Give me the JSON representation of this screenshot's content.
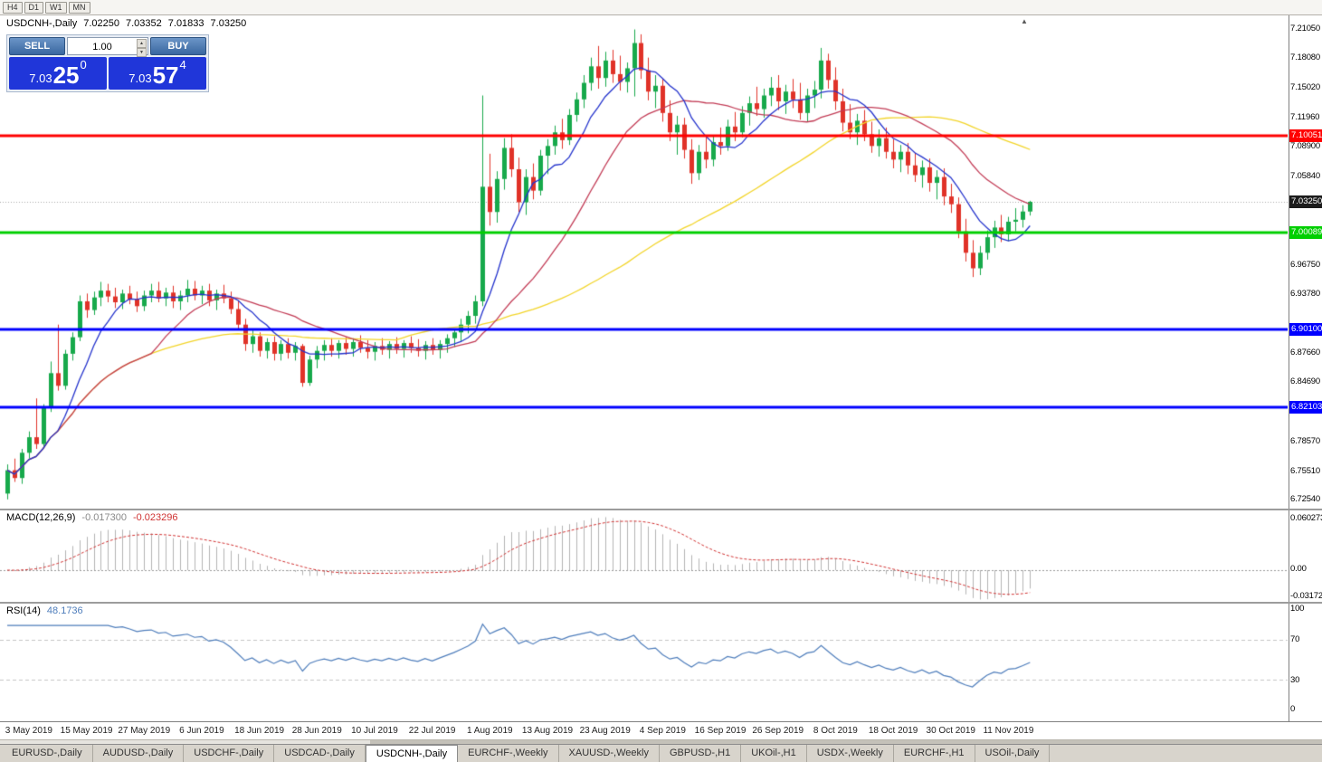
{
  "toolbar": {
    "buttons": [
      "H4",
      "D1",
      "W1",
      "MN"
    ]
  },
  "chart": {
    "title": {
      "symbol": "USDCNH-,Daily",
      "open": "7.02250",
      "high": "7.03352",
      "low": "7.01833",
      "close": "7.03250"
    },
    "shift_marker": "▲",
    "trade_panel": {
      "sell_label": "SELL",
      "buy_label": "BUY",
      "volume": "1.00",
      "sell_price": {
        "main": "7.03",
        "big": "25",
        "sup": "0"
      },
      "buy_price": {
        "main": "7.03",
        "big": "57",
        "sup": "4"
      }
    },
    "price_axis": {
      "labels": [
        "7.21050",
        "7.18080",
        "7.15020",
        "7.11960",
        "7.08900",
        "7.05840",
        "6.96750",
        "6.93780",
        "6.87660",
        "6.84690",
        "6.78570",
        "6.75510",
        "6.72540"
      ],
      "current_price": "7.03250"
    },
    "levels": [
      {
        "label": "7.10051",
        "price": 7.10051,
        "color": "#ff0000"
      },
      {
        "label": "7.00089",
        "price": 7.00089,
        "color": "#00cf00"
      },
      {
        "label": "6.90100",
        "price": 6.901,
        "color": "#0000ff"
      },
      {
        "label": "6.82103",
        "price": 6.82103,
        "color": "#0000ff"
      }
    ]
  },
  "macd": {
    "label": "MACD(12,26,9)",
    "value_main": "-0.017300",
    "value_signal": "-0.023296",
    "axis": {
      "top": "0.060273",
      "zero": "0.00",
      "bottom": "-0.031725"
    }
  },
  "rsi": {
    "label": "RSI(14)",
    "value": "48.1736",
    "axis": {
      "top": "100",
      "upper": "70",
      "lower": "30",
      "bottom": "0"
    }
  },
  "date_axis": {
    "labels": [
      "3 May 2019",
      "15 May 2019",
      "27 May 2019",
      "6 Jun 2019",
      "18 Jun 2019",
      "28 Jun 2019",
      "10 Jul 2019",
      "22 Jul 2019",
      "1 Aug 2019",
      "13 Aug 2019",
      "23 Aug 2019",
      "4 Sep 2019",
      "16 Sep 2019",
      "26 Sep 2019",
      "8 Oct 2019",
      "18 Oct 2019",
      "30 Oct 2019",
      "11 Nov 2019"
    ]
  },
  "tabs": {
    "active_index": 4,
    "items": [
      "EURUSD-,Daily",
      "AUDUSD-,Daily",
      "USDCHF-,Daily",
      "USDCAD-,Daily",
      "USDCNH-,Daily",
      "EURCHF-,Weekly",
      "XAUUSD-,Weekly",
      "GBPUSD-,H1",
      "UKOil-,H1",
      "USDX-,Weekly",
      "EURCHF-,H1",
      "USOil-,Daily"
    ]
  },
  "colors": {
    "candle_up": "#17a94b",
    "candle_down": "#e03228",
    "ma_fast": "#2433cc",
    "ma_mid": "#c23b55",
    "ma_slow": "#f2d428",
    "macd_hist": "#b3b3b3",
    "macd_signal": "#d03030",
    "rsi_line": "#4e7dbb",
    "current_tag": "#1c1c1c",
    "level_red": "#ff0000",
    "level_green": "#00cf00",
    "level_blue": "#0000ff",
    "trade_button": "#3e6da8",
    "price_block": "#2036d9"
  },
  "chart_data": {
    "type": "candlestick",
    "symbol": "USDCNH",
    "timeframe": "Daily",
    "price_range": [
      6.7165,
      7.2245
    ],
    "indicators": {
      "ma_fast_period": 8,
      "ma_mid_period": 21,
      "ma_slow_period": 55,
      "macd": [
        12,
        26,
        9
      ],
      "rsi_period": 14
    },
    "ohlc": [
      [
        6.732,
        6.762,
        6.726,
        6.756
      ],
      [
        6.756,
        6.768,
        6.744,
        6.748
      ],
      [
        6.748,
        6.778,
        6.742,
        6.774
      ],
      [
        6.774,
        6.796,
        6.768,
        6.79
      ],
      [
        6.79,
        6.83,
        6.778,
        6.783
      ],
      [
        6.783,
        6.824,
        6.779,
        6.82
      ],
      [
        6.82,
        6.868,
        6.816,
        6.856
      ],
      [
        6.856,
        6.906,
        6.838,
        6.843
      ],
      [
        6.843,
        6.88,
        6.839,
        6.876
      ],
      [
        6.876,
        6.898,
        6.869,
        6.893
      ],
      [
        6.893,
        6.936,
        6.889,
        6.93
      ],
      [
        6.93,
        6.938,
        6.913,
        6.921
      ],
      [
        6.921,
        6.94,
        6.916,
        6.934
      ],
      [
        6.934,
        6.95,
        6.925,
        6.941
      ],
      [
        6.941,
        6.948,
        6.929,
        6.935
      ],
      [
        6.935,
        6.944,
        6.923,
        6.929
      ],
      [
        6.929,
        6.942,
        6.922,
        6.938
      ],
      [
        6.938,
        6.946,
        6.927,
        6.932
      ],
      [
        6.932,
        6.94,
        6.919,
        6.925
      ],
      [
        6.925,
        6.941,
        6.92,
        6.936
      ],
      [
        6.936,
        6.948,
        6.929,
        6.941
      ],
      [
        6.941,
        6.95,
        6.929,
        6.933
      ],
      [
        6.933,
        6.944,
        6.925,
        6.939
      ],
      [
        6.939,
        6.946,
        6.923,
        6.93
      ],
      [
        6.93,
        6.941,
        6.921,
        6.936
      ],
      [
        6.936,
        6.952,
        6.929,
        6.943
      ],
      [
        6.943,
        6.951,
        6.931,
        6.936
      ],
      [
        6.936,
        6.946,
        6.927,
        6.941
      ],
      [
        6.941,
        6.948,
        6.925,
        6.931
      ],
      [
        6.931,
        6.942,
        6.921,
        6.938
      ],
      [
        6.938,
        6.947,
        6.928,
        6.933
      ],
      [
        6.933,
        6.94,
        6.917,
        6.922
      ],
      [
        6.922,
        6.93,
        6.901,
        6.906
      ],
      [
        6.906,
        6.912,
        6.879,
        6.886
      ],
      [
        6.886,
        6.9,
        6.877,
        6.894
      ],
      [
        6.894,
        6.898,
        6.873,
        6.879
      ],
      [
        6.879,
        6.892,
        6.871,
        6.888
      ],
      [
        6.888,
        6.894,
        6.869,
        6.876
      ],
      [
        6.876,
        6.89,
        6.869,
        6.886
      ],
      [
        6.886,
        6.892,
        6.871,
        6.877
      ],
      [
        6.877,
        6.888,
        6.869,
        6.884
      ],
      [
        6.884,
        6.886,
        6.842,
        6.846
      ],
      [
        6.846,
        6.874,
        6.843,
        6.87
      ],
      [
        6.87,
        6.884,
        6.861,
        6.879
      ],
      [
        6.879,
        6.89,
        6.869,
        6.885
      ],
      [
        6.885,
        6.892,
        6.873,
        6.879
      ],
      [
        6.879,
        6.89,
        6.871,
        6.887
      ],
      [
        6.887,
        6.893,
        6.875,
        6.881
      ],
      [
        6.881,
        6.892,
        6.873,
        6.888
      ],
      [
        6.888,
        6.895,
        6.877,
        6.882
      ],
      [
        6.882,
        6.89,
        6.871,
        6.878
      ],
      [
        6.878,
        6.888,
        6.869,
        6.884
      ],
      [
        6.884,
        6.892,
        6.875,
        6.88
      ],
      [
        6.88,
        6.889,
        6.871,
        6.886
      ],
      [
        6.886,
        6.893,
        6.876,
        6.881
      ],
      [
        6.881,
        6.89,
        6.872,
        6.887
      ],
      [
        6.887,
        6.894,
        6.877,
        6.882
      ],
      [
        6.882,
        6.891,
        6.873,
        6.879
      ],
      [
        6.879,
        6.889,
        6.87,
        6.885
      ],
      [
        6.885,
        6.892,
        6.875,
        6.88
      ],
      [
        6.88,
        6.89,
        6.871,
        6.886
      ],
      [
        6.886,
        6.896,
        6.877,
        6.892
      ],
      [
        6.892,
        6.902,
        6.883,
        6.898
      ],
      [
        6.898,
        6.912,
        6.889,
        6.906
      ],
      [
        6.906,
        6.92,
        6.897,
        6.915
      ],
      [
        6.915,
        6.936,
        6.907,
        6.93
      ],
      [
        6.93,
        7.142,
        6.925,
        7.048
      ],
      [
        7.048,
        7.082,
        7.008,
        7.022
      ],
      [
        7.022,
        7.064,
        7.011,
        7.056
      ],
      [
        7.056,
        7.098,
        7.045,
        7.088
      ],
      [
        7.088,
        7.102,
        7.058,
        7.066
      ],
      [
        7.066,
        7.078,
        7.022,
        7.032
      ],
      [
        7.032,
        7.066,
        7.019,
        7.058
      ],
      [
        7.058,
        7.072,
        7.035,
        7.044
      ],
      [
        7.044,
        7.086,
        7.039,
        7.08
      ],
      [
        7.08,
        7.097,
        7.061,
        7.09
      ],
      [
        7.09,
        7.111,
        7.081,
        7.104
      ],
      [
        7.104,
        7.118,
        7.087,
        7.096
      ],
      [
        7.096,
        7.128,
        7.091,
        7.122
      ],
      [
        7.122,
        7.145,
        7.115,
        7.138
      ],
      [
        7.138,
        7.163,
        7.129,
        7.155
      ],
      [
        7.155,
        7.181,
        7.147,
        7.172
      ],
      [
        7.172,
        7.193,
        7.149,
        7.16
      ],
      [
        7.16,
        7.187,
        7.151,
        7.178
      ],
      [
        7.178,
        7.189,
        7.155,
        7.164
      ],
      [
        7.164,
        7.183,
        7.147,
        7.156
      ],
      [
        7.156,
        7.176,
        7.145,
        7.17
      ],
      [
        7.17,
        7.21,
        7.141,
        7.196
      ],
      [
        7.196,
        7.205,
        7.159,
        7.168
      ],
      [
        7.168,
        7.181,
        7.137,
        7.146
      ],
      [
        7.146,
        7.163,
        7.129,
        7.152
      ],
      [
        7.152,
        7.159,
        7.115,
        7.124
      ],
      [
        7.124,
        7.137,
        7.095,
        7.104
      ],
      [
        7.104,
        7.121,
        7.081,
        7.112
      ],
      [
        7.112,
        7.119,
        7.077,
        7.086
      ],
      [
        7.086,
        7.097,
        7.051,
        7.062
      ],
      [
        7.062,
        7.091,
        7.055,
        7.084
      ],
      [
        7.084,
        7.099,
        7.067,
        7.076
      ],
      [
        7.076,
        7.101,
        7.069,
        7.094
      ],
      [
        7.094,
        7.109,
        7.081,
        7.09
      ],
      [
        7.09,
        7.117,
        7.085,
        7.11
      ],
      [
        7.11,
        7.125,
        7.095,
        7.104
      ],
      [
        7.104,
        7.131,
        7.099,
        7.124
      ],
      [
        7.124,
        7.141,
        7.111,
        7.134
      ],
      [
        7.134,
        7.151,
        7.121,
        7.128
      ],
      [
        7.128,
        7.149,
        7.119,
        7.142
      ],
      [
        7.142,
        7.161,
        7.131,
        7.15
      ],
      [
        7.15,
        7.163,
        7.127,
        7.136
      ],
      [
        7.136,
        7.153,
        7.123,
        7.146
      ],
      [
        7.146,
        7.159,
        7.129,
        7.138
      ],
      [
        7.138,
        7.155,
        7.117,
        7.124
      ],
      [
        7.124,
        7.149,
        7.115,
        7.142
      ],
      [
        7.142,
        7.157,
        7.129,
        7.148
      ],
      [
        7.148,
        7.191,
        7.139,
        7.178
      ],
      [
        7.178,
        7.185,
        7.149,
        7.158
      ],
      [
        7.158,
        7.171,
        7.127,
        7.136
      ],
      [
        7.136,
        7.149,
        7.105,
        7.114
      ],
      [
        7.114,
        7.133,
        7.097,
        7.104
      ],
      [
        7.104,
        7.123,
        7.091,
        7.116
      ],
      [
        7.116,
        7.127,
        7.095,
        7.102
      ],
      [
        7.102,
        7.115,
        7.083,
        7.09
      ],
      [
        7.09,
        7.107,
        7.079,
        7.098
      ],
      [
        7.098,
        7.109,
        7.077,
        7.084
      ],
      [
        7.084,
        7.097,
        7.067,
        7.076
      ],
      [
        7.076,
        7.091,
        7.063,
        7.084
      ],
      [
        7.084,
        7.093,
        7.061,
        7.07
      ],
      [
        7.07,
        7.083,
        7.053,
        7.06
      ],
      [
        7.06,
        7.075,
        7.047,
        7.068
      ],
      [
        7.068,
        7.077,
        7.043,
        7.052
      ],
      [
        7.052,
        7.065,
        7.035,
        7.058
      ],
      [
        7.058,
        7.067,
        7.029,
        7.038
      ],
      [
        7.038,
        7.051,
        7.021,
        7.03
      ],
      [
        7.03,
        7.037,
        6.995,
        7.002
      ],
      [
        7.002,
        7.015,
        6.971,
        6.98
      ],
      [
        6.98,
        6.993,
        6.955,
        6.964
      ],
      [
        6.964,
        6.987,
        6.957,
        6.98
      ],
      [
        6.98,
        7.003,
        6.973,
        6.996
      ],
      [
        6.996,
        7.013,
        6.985,
        7.006
      ],
      [
        7.006,
        7.019,
        6.991,
        6.999
      ],
      [
        6.999,
        7.017,
        6.992,
        7.012
      ],
      [
        7.012,
        7.026,
        7.002,
        7.014
      ],
      [
        7.014,
        7.029,
        7.006,
        7.0225
      ],
      [
        7.0225,
        7.03352,
        7.01833,
        7.0325
      ]
    ]
  }
}
